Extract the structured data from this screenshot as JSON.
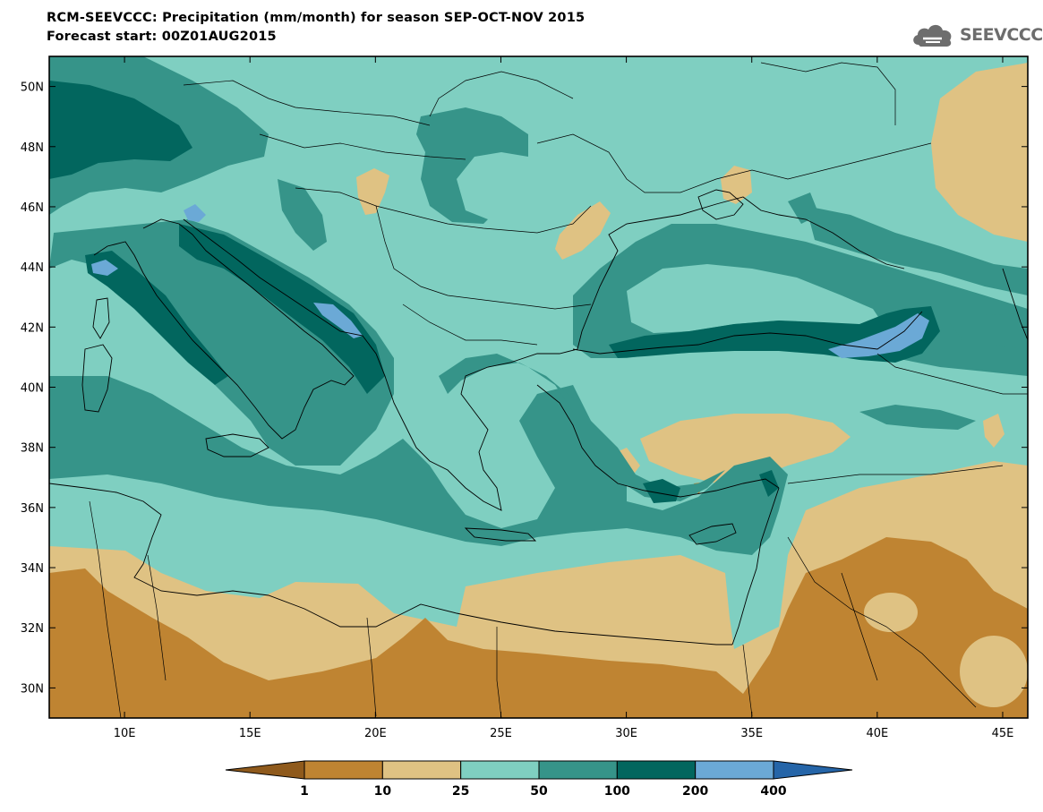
{
  "header": {
    "title_line1": "RCM-SEEVCCC: Precipitation (mm/month) for season SEP-OCT-NOV 2015",
    "title_line2": "Forecast start: 00Z01AUG2015",
    "logo_text": "SEEVCCC",
    "logo_icon": "cloud-icon"
  },
  "map": {
    "lon_range": [
      7,
      46
    ],
    "lat_range": [
      29,
      51
    ],
    "lon_ticks": [
      10,
      15,
      20,
      25,
      30,
      35,
      40,
      45
    ],
    "lon_tick_labels": [
      "10E",
      "15E",
      "20E",
      "25E",
      "30E",
      "35E",
      "40E",
      "45E"
    ],
    "lat_ticks": [
      30,
      32,
      34,
      36,
      38,
      40,
      42,
      44,
      46,
      48,
      50
    ],
    "lat_tick_labels": [
      "30N",
      "32N",
      "34N",
      "36N",
      "38N",
      "40N",
      "42N",
      "44N",
      "46N",
      "48N",
      "50N"
    ],
    "background_color": "#7fcfc1"
  },
  "legend": {
    "type": "colorbar",
    "labels": [
      "1",
      "10",
      "25",
      "50",
      "100",
      "200",
      "400"
    ],
    "colors": [
      "#8f5a1c",
      "#bf8432",
      "#dfc283",
      "#7fcfc1",
      "#369489",
      "#02665e",
      "#6ba9d6",
      "#2565a8"
    ]
  },
  "colors": {
    "lt1": "#8f5a1c",
    "c1_10": "#bf8432",
    "c10_25": "#dfc283",
    "c25_50": "#7fcfc1",
    "c50_100": "#369489",
    "c100_200": "#02665e",
    "c200_400": "#6ba9d6",
    "gt400": "#2565a8"
  }
}
